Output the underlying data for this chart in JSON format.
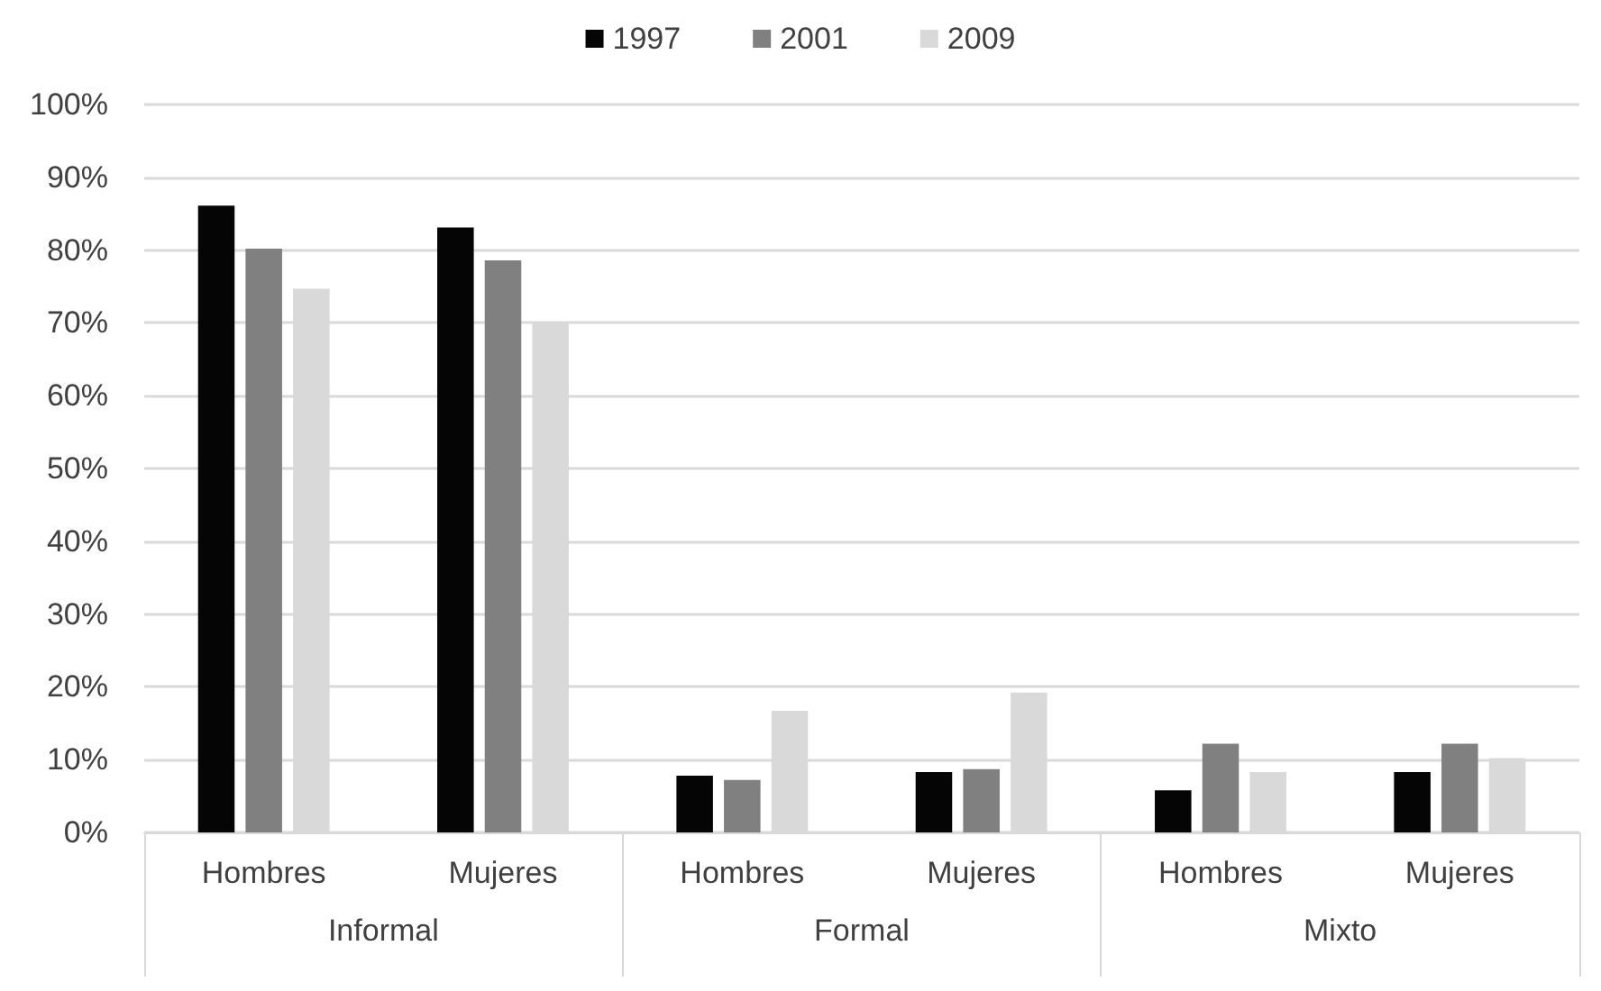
{
  "chart_data": {
    "type": "bar",
    "categories": [
      "Hombres",
      "Mujeres",
      "Hombres",
      "Mujeres",
      "Hombres",
      "Mujeres"
    ],
    "annotations": [
      "Informal",
      "Formal",
      "Mixto"
    ],
    "series": [
      {
        "name": "1997",
        "color": "#050505",
        "values": [
          86.1,
          83.1,
          7.8,
          8.3,
          5.8,
          8.3
        ]
      },
      {
        "name": "2001",
        "color": "#808080",
        "values": [
          80.2,
          78.6,
          7.2,
          8.7,
          12.2,
          12.2
        ]
      },
      {
        "name": "2009",
        "color": "#d9d9d9",
        "values": [
          74.7,
          70,
          16.7,
          19.2,
          8.3,
          10.2
        ]
      }
    ],
    "ylim": [
      0,
      100
    ],
    "yticks": [
      {
        "value": 0,
        "label": "0%"
      },
      {
        "value": 10,
        "label": "10%"
      },
      {
        "value": 20,
        "label": "20%"
      },
      {
        "value": 30,
        "label": "30%"
      },
      {
        "value": 40,
        "label": "40%"
      },
      {
        "value": 50,
        "label": "50%"
      },
      {
        "value": 60,
        "label": "60%"
      },
      {
        "value": 70,
        "label": "70%"
      },
      {
        "value": 80,
        "label": "80%"
      },
      {
        "value": 90,
        "label": "90%"
      },
      {
        "value": 100,
        "label": "100%"
      }
    ],
    "grid": "y",
    "legend": "top"
  }
}
